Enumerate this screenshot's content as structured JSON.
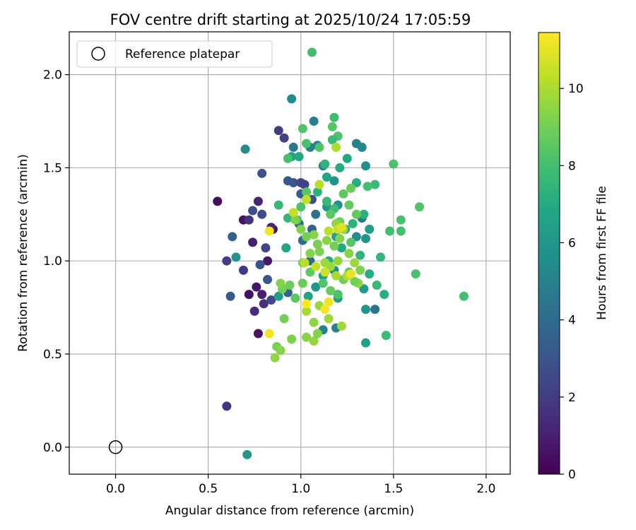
{
  "chart_data": {
    "type": "scatter",
    "title": "FOV centre drift starting at 2025/10/24 17:05:59",
    "xlabel": "Angular distance from reference (arcmin)",
    "ylabel": "Rotation from reference (arcmin)",
    "xlim": [
      -0.25,
      2.13
    ],
    "ylim": [
      -0.145,
      2.23
    ],
    "xticks": [
      0.0,
      0.5,
      1.0,
      1.5,
      2.0
    ],
    "yticks": [
      0.0,
      0.5,
      1.0,
      1.5,
      2.0
    ],
    "xtick_labels": [
      "0.0",
      "0.5",
      "1.0",
      "1.5",
      "2.0"
    ],
    "ytick_labels": [
      "0.0",
      "0.5",
      "1.0",
      "1.5",
      "2.0"
    ],
    "grid": true,
    "legend": {
      "position": "top-left",
      "entries": [
        "Reference platepar"
      ]
    },
    "reference_point": {
      "x": 0.0,
      "y": 0.0
    },
    "colorbar": {
      "label": "Hours from first FF file",
      "colormap": "viridis",
      "range": [
        0,
        11.45
      ],
      "ticks": [
        0,
        2,
        4,
        6,
        8,
        10
      ],
      "tick_labels": [
        "0",
        "2",
        "4",
        "6",
        "8",
        "10"
      ]
    },
    "points": [
      [
        0.55,
        1.32,
        0.4
      ],
      [
        0.69,
        1.22,
        0.6
      ],
      [
        0.72,
        0.82,
        0.5
      ],
      [
        0.76,
        0.86,
        0.7
      ],
      [
        0.77,
        0.61,
        0.6
      ],
      [
        0.79,
        0.82,
        1.0
      ],
      [
        0.82,
        1.0,
        0.8
      ],
      [
        0.85,
        1.17,
        0.5
      ],
      [
        0.74,
        1.1,
        1.0
      ],
      [
        0.77,
        1.32,
        1.2
      ],
      [
        0.84,
        1.18,
        1.1
      ],
      [
        0.6,
        1.0,
        2.1
      ],
      [
        0.6,
        0.22,
        1.8
      ],
      [
        0.69,
        0.95,
        1.9
      ],
      [
        0.75,
        0.73,
        1.5
      ],
      [
        0.8,
        0.77,
        1.6
      ],
      [
        0.72,
        1.22,
        1.7
      ],
      [
        0.88,
        1.7,
        2.0
      ],
      [
        0.91,
        1.66,
        2.2
      ],
      [
        0.81,
        1.07,
        2.3
      ],
      [
        0.79,
        1.25,
        2.6
      ],
      [
        0.74,
        1.27,
        2.7
      ],
      [
        0.78,
        0.98,
        2.9
      ],
      [
        0.82,
        0.9,
        3.0
      ],
      [
        0.79,
        1.47,
        2.8
      ],
      [
        0.93,
        1.43,
        3.2
      ],
      [
        0.62,
        0.81,
        3.3
      ],
      [
        0.63,
        1.13,
        3.5
      ],
      [
        0.96,
        1.42,
        3.1
      ],
      [
        0.99,
        1.2,
        3.4
      ],
      [
        1.0,
        1.42,
        2.4
      ],
      [
        1.02,
        1.41,
        2.1
      ],
      [
        1.06,
        1.33,
        2.8
      ],
      [
        1.0,
        1.36,
        3.3
      ],
      [
        1.06,
        1.17,
        3.7
      ],
      [
        1.01,
        1.11,
        4.0
      ],
      [
        0.93,
        0.83,
        3.6
      ],
      [
        0.84,
        0.79,
        2.5
      ],
      [
        1.05,
        1.0,
        3.8
      ],
      [
        1.08,
        1.25,
        4.2
      ],
      [
        0.96,
        1.61,
        4.5
      ],
      [
        1.05,
        1.61,
        5.0
      ],
      [
        1.09,
        1.62,
        4.7
      ],
      [
        1.12,
        1.51,
        5.3
      ],
      [
        1.18,
        1.43,
        5.8
      ],
      [
        1.3,
        1.63,
        4.9
      ],
      [
        1.33,
        1.61,
        5.2
      ],
      [
        1.35,
        1.51,
        5.7
      ],
      [
        1.33,
        1.23,
        4.6
      ],
      [
        1.3,
        1.13,
        5.5
      ],
      [
        1.35,
        1.12,
        5.9
      ],
      [
        1.37,
        1.17,
        6.4
      ],
      [
        1.4,
        0.74,
        4.3
      ],
      [
        1.35,
        0.74,
        5.9
      ],
      [
        1.34,
        0.85,
        6.2
      ],
      [
        1.07,
        1.75,
        4.8
      ],
      [
        0.95,
        1.87,
        5.6
      ],
      [
        0.7,
        1.6,
        5.4
      ],
      [
        0.65,
        1.02,
        5.9
      ],
      [
        0.71,
        -0.04,
        6.0
      ],
      [
        1.19,
        0.64,
        5.1
      ],
      [
        1.2,
        0.8,
        6.3
      ],
      [
        1.12,
        0.63,
        5.0
      ],
      [
        1.18,
        0.95,
        5.4
      ],
      [
        1.14,
        1.29,
        6.1
      ],
      [
        1.2,
        1.3,
        5.8
      ],
      [
        1.24,
        1.17,
        6.4
      ],
      [
        1.19,
        1.13,
        6.6
      ],
      [
        1.22,
        1.07,
        6.8
      ],
      [
        1.15,
        1.0,
        6.9
      ],
      [
        1.12,
        0.92,
        6.5
      ],
      [
        1.08,
        0.86,
        6.0
      ],
      [
        1.04,
        0.81,
        6.6
      ],
      [
        0.92,
        1.07,
        6.7
      ],
      [
        0.88,
        0.81,
        6.3
      ],
      [
        0.95,
        1.56,
        6.5
      ],
      [
        0.99,
        1.56,
        6.9
      ],
      [
        1.14,
        1.45,
        6.7
      ],
      [
        1.21,
        1.5,
        7.0
      ],
      [
        1.25,
        1.55,
        6.8
      ],
      [
        1.3,
        1.42,
        7.1
      ],
      [
        1.34,
        1.25,
        7.2
      ],
      [
        1.32,
        1.03,
        7.4
      ],
      [
        1.35,
        0.56,
        6.4
      ],
      [
        1.28,
        1.2,
        7.3
      ],
      [
        1.46,
        0.6,
        7.8
      ],
      [
        1.45,
        0.82,
        7.2
      ],
      [
        1.43,
        1.02,
        7.5
      ],
      [
        1.37,
        0.93,
        7.0
      ],
      [
        1.41,
        0.87,
        7.6
      ],
      [
        1.48,
        1.16,
        7.9
      ],
      [
        1.54,
        1.22,
        8.1
      ],
      [
        1.54,
        1.16,
        8.0
      ],
      [
        1.5,
        1.52,
        8.2
      ],
      [
        1.4,
        1.41,
        7.7
      ],
      [
        1.36,
        1.4,
        8.0
      ],
      [
        1.64,
        1.29,
        8.3
      ],
      [
        1.62,
        0.93,
        8.1
      ],
      [
        1.88,
        0.81,
        8.0
      ],
      [
        1.06,
        2.12,
        7.9
      ],
      [
        1.18,
        1.77,
        7.8
      ],
      [
        1.2,
        1.67,
        8.2
      ],
      [
        1.17,
        1.72,
        8.4
      ],
      [
        1.17,
        1.65,
        7.7
      ],
      [
        1.01,
        1.71,
        8.3
      ],
      [
        0.93,
        1.55,
        8.0
      ],
      [
        1.03,
        1.63,
        8.1
      ],
      [
        1.1,
        1.61,
        8.3
      ],
      [
        1.13,
        1.52,
        7.4
      ],
      [
        0.88,
        1.3,
        7.6
      ],
      [
        0.93,
        1.23,
        7.5
      ],
      [
        0.98,
        1.22,
        7.8
      ],
      [
        1.0,
        1.29,
        8.2
      ],
      [
        1.03,
        1.37,
        8.4
      ],
      [
        1.09,
        1.37,
        7.3
      ],
      [
        1.14,
        1.32,
        7.6
      ],
      [
        1.18,
        1.28,
        7.9
      ],
      [
        1.16,
        1.25,
        8.5
      ],
      [
        1.23,
        1.36,
        8.6
      ],
      [
        1.27,
        1.39,
        8.8
      ],
      [
        1.26,
        1.3,
        8.7
      ],
      [
        1.21,
        1.21,
        8.9
      ],
      [
        1.27,
        1.1,
        8.4
      ],
      [
        1.3,
        1.25,
        8.7
      ],
      [
        1.26,
        0.94,
        8.6
      ],
      [
        1.23,
        0.9,
        8.9
      ],
      [
        1.2,
        0.82,
        8.2
      ],
      [
        1.16,
        0.84,
        8.7
      ],
      [
        1.12,
        0.88,
        8.3
      ],
      [
        1.05,
        0.94,
        8.6
      ],
      [
        1.01,
        0.88,
        8.8
      ],
      [
        0.97,
        0.8,
        8.5
      ],
      [
        0.94,
        0.87,
        8.9
      ],
      [
        0.9,
        0.85,
        9.0
      ],
      [
        1.01,
        0.99,
        9.1
      ],
      [
        1.05,
        1.04,
        9.3
      ],
      [
        1.1,
        1.05,
        9.2
      ],
      [
        1.14,
        1.11,
        9.4
      ],
      [
        1.18,
        1.08,
        9.0
      ],
      [
        1.21,
        1.12,
        9.3
      ],
      [
        1.19,
        1.2,
        9.5
      ],
      [
        1.23,
        1.17,
        9.6
      ],
      [
        1.26,
        1.04,
        9.4
      ],
      [
        1.29,
        0.99,
        9.7
      ],
      [
        1.32,
        0.95,
        9.2
      ],
      [
        1.31,
        0.88,
        9.5
      ],
      [
        1.29,
        0.89,
        9.0
      ],
      [
        1.2,
        1.0,
        9.6
      ],
      [
        1.16,
        0.97,
        9.7
      ],
      [
        1.13,
        0.99,
        9.8
      ],
      [
        1.09,
        1.09,
        9.1
      ],
      [
        1.07,
        1.14,
        9.4
      ],
      [
        1.03,
        1.13,
        9.0
      ],
      [
        1.0,
        1.17,
        9.3
      ],
      [
        0.97,
        1.22,
        9.2
      ],
      [
        0.89,
        0.88,
        9.3
      ],
      [
        0.91,
        0.69,
        9.0
      ],
      [
        0.87,
        0.54,
        9.1
      ],
      [
        0.89,
        0.52,
        9.4
      ],
      [
        0.86,
        0.48,
        9.6
      ],
      [
        0.95,
        0.58,
        9.2
      ],
      [
        1.03,
        0.59,
        9.4
      ],
      [
        1.07,
        0.57,
        9.6
      ],
      [
        1.09,
        0.61,
        9.3
      ],
      [
        1.15,
        0.69,
        9.8
      ],
      [
        1.07,
        0.67,
        9.5
      ],
      [
        1.03,
        0.73,
        9.9
      ],
      [
        1.1,
        0.76,
        9.7
      ],
      [
        1.22,
        0.65,
        9.8
      ],
      [
        1.19,
        0.92,
        10.0
      ],
      [
        1.19,
        1.61,
        10.1
      ],
      [
        1.1,
        1.41,
        10.2
      ],
      [
        1.03,
        1.33,
        10.3
      ],
      [
        0.96,
        1.26,
        10.4
      ],
      [
        1.2,
        1.17,
        10.5
      ],
      [
        1.15,
        1.16,
        10.3
      ],
      [
        1.02,
        0.99,
        10.2
      ],
      [
        1.08,
        0.97,
        10.4
      ],
      [
        1.13,
        0.94,
        10.6
      ],
      [
        1.25,
        0.92,
        10.1
      ],
      [
        0.83,
        1.16,
        11.2
      ],
      [
        0.83,
        0.61,
        11.3
      ],
      [
        1.03,
        0.77,
        11.4
      ],
      [
        1.13,
        0.74,
        11.3
      ],
      [
        1.15,
        0.78,
        11.2
      ],
      [
        1.27,
        0.93,
        11.1
      ],
      [
        1.22,
        1.18,
        10.9
      ]
    ]
  }
}
